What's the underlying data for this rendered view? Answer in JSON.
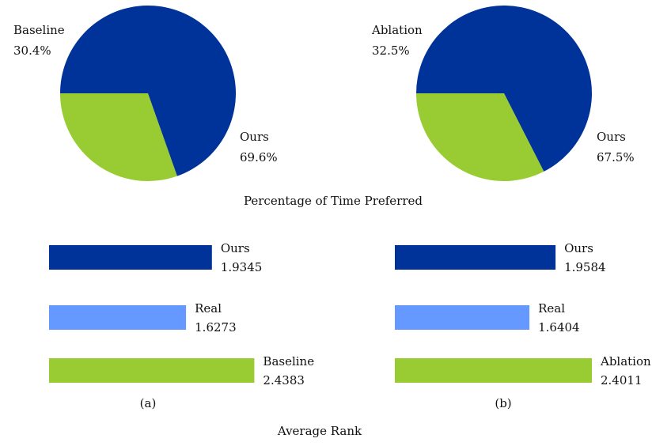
{
  "captions": {
    "pie_section": "Percentage of Time Preferred",
    "bar_section": "Average Rank",
    "panel_a": "(a)",
    "panel_b": "(b)"
  },
  "colors": {
    "ours": "#003399",
    "baseline": "#99CC33",
    "real": "#6699FF"
  },
  "chart_data": [
    {
      "type": "pie",
      "panel": "a",
      "slices": [
        {
          "label": "Baseline",
          "value": 30.4,
          "display": "30.4%",
          "color": "#99CC33"
        },
        {
          "label": "Ours",
          "value": 69.6,
          "display": "69.6%",
          "color": "#003399"
        }
      ]
    },
    {
      "type": "pie",
      "panel": "b",
      "slices": [
        {
          "label": "Ablation",
          "value": 32.5,
          "display": "32.5%",
          "color": "#99CC33"
        },
        {
          "label": "Ours",
          "value": 67.5,
          "display": "67.5%",
          "color": "#003399"
        }
      ]
    },
    {
      "type": "bar",
      "orientation": "horizontal",
      "panel": "a",
      "categories": [
        "Ours",
        "Real",
        "Baseline"
      ],
      "values": [
        1.9345,
        1.6273,
        2.4383
      ],
      "display": [
        "1.9345",
        "1.6273",
        "2.4383"
      ],
      "colors": [
        "#003399",
        "#6699FF",
        "#99CC33"
      ],
      "xlim": [
        0,
        2.5
      ]
    },
    {
      "type": "bar",
      "orientation": "horizontal",
      "panel": "b",
      "categories": [
        "Ours",
        "Real",
        "Ablation"
      ],
      "values": [
        1.9584,
        1.6404,
        2.4011
      ],
      "display": [
        "1.9584",
        "1.6404",
        "2.4011"
      ],
      "colors": [
        "#003399",
        "#6699FF",
        "#99CC33"
      ],
      "xlim": [
        0,
        2.5
      ]
    }
  ]
}
